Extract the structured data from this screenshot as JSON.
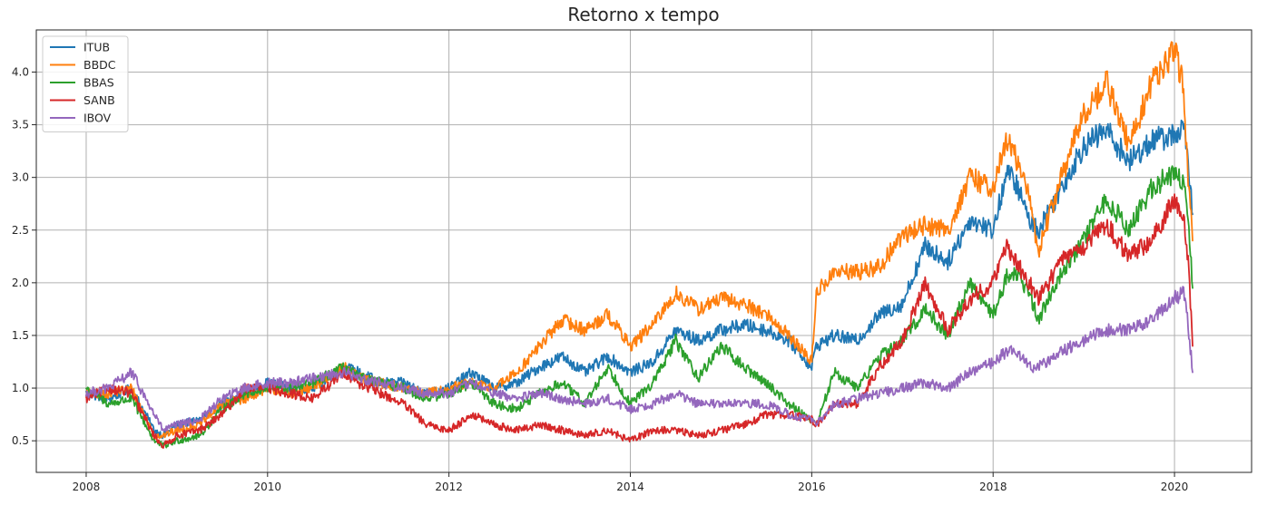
{
  "chart_data": {
    "type": "line",
    "title": "Retorno x tempo",
    "xlabel": "",
    "ylabel": "",
    "xlim": [
      2007.45,
      2020.85
    ],
    "ylim": [
      0.2,
      4.4
    ],
    "xticks": [
      2008,
      2010,
      2012,
      2014,
      2016,
      2018,
      2020
    ],
    "xtick_labels": [
      "2008",
      "2010",
      "2012",
      "2014",
      "2016",
      "2018",
      "2020"
    ],
    "yticks": [
      0.5,
      1.0,
      1.5,
      2.0,
      2.5,
      3.0,
      3.5,
      4.0
    ],
    "ytick_labels": [
      "0.5",
      "1.0",
      "1.5",
      "2.0",
      "2.5",
      "3.0",
      "3.5",
      "4.0"
    ],
    "grid": true,
    "legend_position": "top-left",
    "series": [
      {
        "name": "ITUB",
        "color": "#1f77b4",
        "x": [
          2008.0,
          2008.25,
          2008.5,
          2008.75,
          2008.85,
          2009.0,
          2009.25,
          2009.5,
          2009.75,
          2010.0,
          2010.25,
          2010.5,
          2010.85,
          2011.0,
          2011.25,
          2011.5,
          2011.75,
          2012.0,
          2012.25,
          2012.5,
          2012.75,
          2013.0,
          2013.25,
          2013.5,
          2013.75,
          2014.0,
          2014.25,
          2014.5,
          2014.75,
          2015.0,
          2015.25,
          2015.5,
          2015.75,
          2016.0,
          2016.05,
          2016.25,
          2016.5,
          2016.75,
          2017.0,
          2017.25,
          2017.5,
          2017.75,
          2018.0,
          2018.15,
          2018.25,
          2018.4,
          2018.5,
          2018.75,
          2019.0,
          2019.25,
          2019.5,
          2019.75,
          2020.0,
          2020.1,
          2020.15,
          2020.2
        ],
        "values": [
          0.95,
          0.9,
          1.0,
          0.6,
          0.55,
          0.65,
          0.7,
          0.85,
          0.95,
          1.05,
          1.0,
          1.0,
          1.2,
          1.15,
          1.05,
          1.05,
          0.95,
          1.0,
          1.15,
          1.0,
          1.05,
          1.2,
          1.3,
          1.15,
          1.3,
          1.15,
          1.25,
          1.55,
          1.45,
          1.55,
          1.6,
          1.55,
          1.45,
          1.2,
          1.4,
          1.5,
          1.45,
          1.7,
          1.8,
          2.35,
          2.2,
          2.6,
          2.5,
          3.05,
          2.95,
          2.6,
          2.5,
          2.9,
          3.3,
          3.45,
          3.15,
          3.35,
          3.4,
          3.5,
          3.1,
          2.65
        ]
      },
      {
        "name": "BBDC",
        "color": "#ff7f0e",
        "x": [
          2008.0,
          2008.25,
          2008.5,
          2008.75,
          2008.85,
          2009.0,
          2009.25,
          2009.5,
          2009.75,
          2010.0,
          2010.25,
          2010.5,
          2010.85,
          2011.0,
          2011.25,
          2011.5,
          2011.75,
          2012.0,
          2012.25,
          2012.5,
          2012.75,
          2013.0,
          2013.25,
          2013.5,
          2013.75,
          2014.0,
          2014.25,
          2014.5,
          2014.75,
          2015.0,
          2015.25,
          2015.5,
          2015.75,
          2016.0,
          2016.05,
          2016.25,
          2016.5,
          2016.75,
          2017.0,
          2017.25,
          2017.5,
          2017.75,
          2018.0,
          2018.15,
          2018.25,
          2018.4,
          2018.5,
          2018.75,
          2019.0,
          2019.25,
          2019.5,
          2019.75,
          2020.0,
          2020.1,
          2020.15,
          2020.2
        ],
        "values": [
          0.95,
          0.95,
          1.0,
          0.55,
          0.55,
          0.6,
          0.65,
          0.85,
          0.9,
          1.0,
          0.95,
          1.0,
          1.2,
          1.1,
          1.05,
          1.0,
          0.95,
          1.0,
          1.05,
          1.0,
          1.15,
          1.4,
          1.65,
          1.55,
          1.7,
          1.4,
          1.6,
          1.9,
          1.75,
          1.85,
          1.8,
          1.7,
          1.5,
          1.25,
          1.9,
          2.1,
          2.1,
          2.15,
          2.45,
          2.55,
          2.5,
          3.0,
          2.9,
          3.35,
          3.2,
          2.8,
          2.3,
          3.0,
          3.6,
          3.9,
          3.3,
          3.9,
          4.2,
          3.85,
          3.0,
          2.4
        ]
      },
      {
        "name": "BBAS",
        "color": "#2ca02c",
        "x": [
          2008.0,
          2008.25,
          2008.5,
          2008.75,
          2008.85,
          2009.0,
          2009.25,
          2009.5,
          2009.75,
          2010.0,
          2010.25,
          2010.5,
          2010.85,
          2011.0,
          2011.25,
          2011.5,
          2011.75,
          2012.0,
          2012.25,
          2012.5,
          2012.75,
          2013.0,
          2013.25,
          2013.5,
          2013.75,
          2014.0,
          2014.25,
          2014.5,
          2014.75,
          2015.0,
          2015.25,
          2015.5,
          2015.75,
          2016.0,
          2016.05,
          2016.25,
          2016.5,
          2016.75,
          2017.0,
          2017.25,
          2017.5,
          2017.75,
          2018.0,
          2018.15,
          2018.25,
          2018.4,
          2018.5,
          2018.75,
          2019.0,
          2019.25,
          2019.5,
          2019.75,
          2020.0,
          2020.1,
          2020.15,
          2020.2
        ],
        "values": [
          1.0,
          0.85,
          0.9,
          0.5,
          0.45,
          0.5,
          0.55,
          0.8,
          0.95,
          1.0,
          1.0,
          1.05,
          1.2,
          1.1,
          1.05,
          1.0,
          0.9,
          0.95,
          1.05,
          0.85,
          0.8,
          0.95,
          1.05,
          0.85,
          1.2,
          0.85,
          1.05,
          1.45,
          1.1,
          1.4,
          1.2,
          1.05,
          0.85,
          0.7,
          0.65,
          1.15,
          1.0,
          1.3,
          1.45,
          1.75,
          1.5,
          2.0,
          1.7,
          2.05,
          2.1,
          1.9,
          1.65,
          2.1,
          2.4,
          2.8,
          2.5,
          2.9,
          3.05,
          2.95,
          2.6,
          1.95
        ]
      },
      {
        "name": "SANB",
        "color": "#d62728",
        "x": [
          2008.0,
          2008.25,
          2008.5,
          2008.75,
          2008.85,
          2009.0,
          2009.25,
          2009.5,
          2009.75,
          2010.0,
          2010.25,
          2010.5,
          2010.85,
          2011.0,
          2011.25,
          2011.5,
          2011.75,
          2012.0,
          2012.25,
          2012.5,
          2012.75,
          2013.0,
          2013.25,
          2013.5,
          2013.75,
          2014.0,
          2014.25,
          2014.5,
          2014.75,
          2015.0,
          2015.25,
          2015.5,
          2015.75,
          2016.0,
          2016.05,
          2016.25,
          2016.5,
          2016.75,
          2017.0,
          2017.25,
          2017.5,
          2017.75,
          2018.0,
          2018.15,
          2018.25,
          2018.4,
          2018.5,
          2018.75,
          2019.0,
          2019.25,
          2019.5,
          2019.75,
          2020.0,
          2020.1,
          2020.15,
          2020.2
        ],
        "values": [
          0.9,
          1.0,
          0.95,
          0.55,
          0.45,
          0.55,
          0.6,
          0.75,
          1.0,
          1.0,
          0.95,
          0.9,
          1.15,
          1.05,
          0.95,
          0.85,
          0.65,
          0.6,
          0.75,
          0.65,
          0.6,
          0.65,
          0.6,
          0.55,
          0.6,
          0.5,
          0.6,
          0.6,
          0.55,
          0.6,
          0.65,
          0.75,
          0.75,
          0.7,
          0.65,
          0.85,
          0.85,
          1.2,
          1.45,
          2.0,
          1.55,
          1.85,
          2.0,
          2.35,
          2.2,
          2.0,
          1.85,
          2.2,
          2.35,
          2.55,
          2.25,
          2.4,
          2.8,
          2.6,
          2.2,
          1.4
        ]
      },
      {
        "name": "IBOV",
        "color": "#9467bd",
        "x": [
          2008.0,
          2008.25,
          2008.5,
          2008.75,
          2008.85,
          2009.0,
          2009.25,
          2009.5,
          2009.75,
          2010.0,
          2010.25,
          2010.5,
          2010.85,
          2011.0,
          2011.25,
          2011.5,
          2011.75,
          2012.0,
          2012.25,
          2012.5,
          2012.75,
          2013.0,
          2013.25,
          2013.5,
          2013.75,
          2014.0,
          2014.25,
          2014.5,
          2014.75,
          2015.0,
          2015.25,
          2015.5,
          2015.75,
          2016.0,
          2016.05,
          2016.25,
          2016.5,
          2016.75,
          2017.0,
          2017.25,
          2017.5,
          2017.75,
          2018.0,
          2018.15,
          2018.25,
          2018.4,
          2018.5,
          2018.75,
          2019.0,
          2019.25,
          2019.5,
          2019.75,
          2020.0,
          2020.1,
          2020.15,
          2020.2
        ],
        "values": [
          0.95,
          1.0,
          1.15,
          0.75,
          0.6,
          0.65,
          0.7,
          0.9,
          1.0,
          1.05,
          1.05,
          1.1,
          1.15,
          1.1,
          1.05,
          1.0,
          0.95,
          0.95,
          1.05,
          0.95,
          0.9,
          0.95,
          0.9,
          0.85,
          0.9,
          0.8,
          0.85,
          0.95,
          0.85,
          0.85,
          0.85,
          0.85,
          0.75,
          0.7,
          0.65,
          0.85,
          0.9,
          0.95,
          1.0,
          1.05,
          1.0,
          1.15,
          1.25,
          1.35,
          1.35,
          1.2,
          1.2,
          1.35,
          1.45,
          1.55,
          1.55,
          1.65,
          1.85,
          1.9,
          1.6,
          1.15
        ]
      }
    ]
  }
}
